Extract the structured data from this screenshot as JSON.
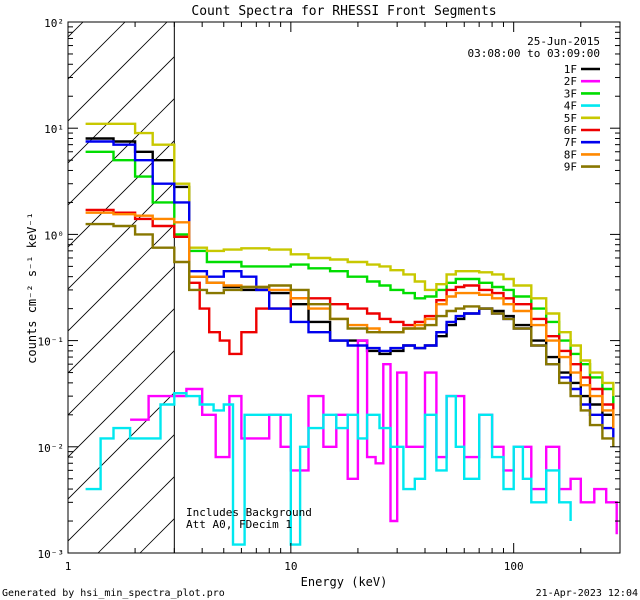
{
  "chart_data": {
    "type": "line",
    "title": "Count Spectra for RHESSI Front Segments",
    "xlabel": "Energy (keV)",
    "ylabel": "counts cm⁻² s⁻¹ keV⁻¹",
    "x_scale": "log",
    "y_scale": "log",
    "xlim": [
      1,
      300
    ],
    "ylim": [
      0.001,
      100
    ],
    "x_ticks": [
      {
        "value": 1,
        "label": "1"
      },
      {
        "value": 10,
        "label": "10"
      },
      {
        "value": 100,
        "label": "100"
      }
    ],
    "y_ticks": [
      {
        "value": 100,
        "label": "10²"
      },
      {
        "value": 10,
        "label": "10¹"
      },
      {
        "value": 1,
        "label": "10⁰"
      },
      {
        "value": 0.1,
        "label": "10⁻¹"
      },
      {
        "value": 0.01,
        "label": "10⁻²"
      },
      {
        "value": 0.001,
        "label": "10⁻³"
      }
    ],
    "date": "25-Jun-2015",
    "time_range": "03:08:00 to 03:09:00",
    "annotations": [
      "Includes Background",
      "Att A0, FDecim 1"
    ],
    "excluded_region_below_kev": 3,
    "series": [
      {
        "name": "1F",
        "color": "#000000",
        "x": [
          1.2,
          1.6,
          2.0,
          2.4,
          3.0,
          3.5,
          4.2,
          5.0,
          6.0,
          8.0,
          10,
          12,
          15,
          18,
          22,
          25,
          28,
          32,
          36,
          40,
          45,
          50,
          55,
          60,
          70,
          80,
          90,
          100,
          120,
          140,
          160,
          180,
          200,
          220,
          250,
          280
        ],
        "values": [
          8,
          7.5,
          6,
          5,
          2.8,
          0.4,
          0.35,
          0.32,
          0.3,
          0.28,
          0.22,
          0.15,
          0.1,
          0.1,
          0.08,
          0.075,
          0.08,
          0.09,
          0.085,
          0.09,
          0.11,
          0.14,
          0.16,
          0.18,
          0.2,
          0.19,
          0.17,
          0.14,
          0.1,
          0.07,
          0.05,
          0.04,
          0.03,
          0.025,
          0.02,
          0.015
        ]
      },
      {
        "name": "2F",
        "color": "#ff00ff",
        "x": [
          1.9,
          2.3,
          2.8,
          3.4,
          4.0,
          4.6,
          5.3,
          6.0,
          7.0,
          8.0,
          9.0,
          10,
          12,
          14,
          16,
          18,
          20,
          22,
          24,
          26,
          28,
          30,
          33,
          36,
          40,
          45,
          50,
          60,
          70,
          80,
          90,
          100,
          120,
          140,
          160,
          180,
          200,
          230,
          260,
          290
        ],
        "values": [
          0.018,
          0.03,
          0.03,
          0.035,
          0.02,
          0.008,
          0.03,
          0.012,
          0.012,
          0.02,
          0.01,
          0.006,
          0.03,
          0.01,
          0.02,
          0.005,
          0.1,
          0.008,
          0.007,
          0.06,
          0.002,
          0.05,
          0.01,
          0.01,
          0.05,
          0.008,
          0.03,
          0.008,
          0.02,
          0.01,
          0.006,
          0.01,
          0.004,
          0.01,
          0.004,
          0.005,
          0.003,
          0.004,
          0.003,
          0.0015
        ]
      },
      {
        "name": "3F",
        "color": "#00dd00",
        "x": [
          1.2,
          1.6,
          2.0,
          2.4,
          3.0,
          3.5,
          4.2,
          5.0,
          6.0,
          8.0,
          10,
          12,
          15,
          18,
          22,
          25,
          28,
          32,
          36,
          40,
          45,
          50,
          55,
          60,
          70,
          80,
          90,
          100,
          120,
          140,
          160,
          180,
          200,
          220,
          250,
          280
        ],
        "values": [
          6,
          5,
          3.5,
          2.0,
          1.0,
          0.7,
          0.55,
          0.55,
          0.5,
          0.5,
          0.52,
          0.48,
          0.45,
          0.4,
          0.36,
          0.33,
          0.3,
          0.28,
          0.25,
          0.26,
          0.3,
          0.35,
          0.38,
          0.38,
          0.35,
          0.32,
          0.3,
          0.26,
          0.2,
          0.15,
          0.1,
          0.075,
          0.06,
          0.045,
          0.035,
          0.025
        ]
      },
      {
        "name": "4F",
        "color": "#00e8f0",
        "x": [
          1.2,
          1.4,
          1.6,
          1.9,
          2.2,
          2.6,
          3.0,
          3.4,
          3.9,
          4.5,
          5.0,
          5.5,
          6.2,
          7.0,
          8.0,
          9.0,
          10,
          11,
          12,
          14,
          16,
          18,
          20,
          22,
          25,
          28,
          32,
          36,
          40,
          45,
          50,
          55,
          60,
          70,
          80,
          90,
          100,
          110,
          120,
          140,
          160,
          180
        ],
        "values": [
          0.004,
          0.012,
          0.015,
          0.012,
          0.012,
          0.025,
          0.032,
          0.03,
          0.025,
          0.022,
          0.025,
          0.0012,
          0.02,
          0.02,
          0.02,
          0.02,
          0.0012,
          0.01,
          0.015,
          0.02,
          0.015,
          0.02,
          0.012,
          0.02,
          0.015,
          0.01,
          0.004,
          0.005,
          0.02,
          0.006,
          0.03,
          0.01,
          0.005,
          0.02,
          0.008,
          0.004,
          0.01,
          0.005,
          0.003,
          0.006,
          0.003,
          0.002
        ]
      },
      {
        "name": "5F",
        "color": "#c8c800",
        "x": [
          1.2,
          1.6,
          2.0,
          2.4,
          3.0,
          3.5,
          4.2,
          5.0,
          6.0,
          8.0,
          10,
          12,
          15,
          18,
          22,
          25,
          28,
          32,
          36,
          40,
          45,
          50,
          55,
          60,
          70,
          80,
          90,
          100,
          120,
          140,
          160,
          180,
          200,
          220,
          250,
          280
        ],
        "values": [
          11,
          11,
          9,
          7,
          3,
          0.75,
          0.7,
          0.72,
          0.74,
          0.72,
          0.65,
          0.6,
          0.58,
          0.55,
          0.52,
          0.5,
          0.46,
          0.42,
          0.36,
          0.3,
          0.34,
          0.42,
          0.45,
          0.45,
          0.44,
          0.42,
          0.38,
          0.33,
          0.25,
          0.18,
          0.12,
          0.09,
          0.065,
          0.05,
          0.04,
          0.03
        ]
      },
      {
        "name": "6F",
        "color": "#ee0000",
        "x": [
          1.2,
          1.6,
          2.0,
          2.4,
          3.0,
          3.5,
          3.9,
          4.3,
          4.8,
          5.3,
          6.0,
          7.0,
          8.0,
          10,
          12,
          15,
          18,
          22,
          25,
          28,
          32,
          36,
          40,
          45,
          50,
          55,
          60,
          70,
          80,
          90,
          100,
          120,
          140,
          160,
          180,
          200,
          220,
          250,
          280
        ],
        "values": [
          1.7,
          1.6,
          1.4,
          1.2,
          0.95,
          0.35,
          0.2,
          0.12,
          0.1,
          0.075,
          0.12,
          0.2,
          0.2,
          0.25,
          0.25,
          0.22,
          0.2,
          0.18,
          0.16,
          0.15,
          0.14,
          0.15,
          0.17,
          0.24,
          0.3,
          0.32,
          0.33,
          0.3,
          0.28,
          0.25,
          0.22,
          0.16,
          0.11,
          0.08,
          0.06,
          0.045,
          0.035,
          0.025,
          0.02
        ]
      },
      {
        "name": "7F",
        "color": "#0000ee",
        "x": [
          1.2,
          1.6,
          2.0,
          2.4,
          3.0,
          3.5,
          4.2,
          5.0,
          6.0,
          7.0,
          8.0,
          10,
          12,
          15,
          18,
          22,
          25,
          28,
          32,
          36,
          40,
          45,
          50,
          55,
          60,
          70,
          80,
          90,
          100,
          120,
          140,
          160,
          180,
          200,
          220,
          250,
          280
        ],
        "values": [
          7.5,
          7,
          5,
          3,
          2.0,
          0.45,
          0.4,
          0.45,
          0.4,
          0.3,
          0.2,
          0.15,
          0.12,
          0.1,
          0.09,
          0.085,
          0.08,
          0.085,
          0.09,
          0.085,
          0.09,
          0.12,
          0.15,
          0.17,
          0.18,
          0.2,
          0.18,
          0.16,
          0.13,
          0.09,
          0.06,
          0.045,
          0.035,
          0.025,
          0.02,
          0.015,
          0.012
        ]
      },
      {
        "name": "8F",
        "color": "#ff8800",
        "x": [
          1.2,
          1.6,
          2.0,
          2.4,
          3.0,
          3.5,
          4.2,
          5.0,
          6.0,
          8.0,
          10,
          12,
          15,
          18,
          22,
          25,
          28,
          32,
          36,
          40,
          45,
          50,
          55,
          60,
          70,
          80,
          90,
          100,
          120,
          140,
          160,
          180,
          200,
          220,
          250,
          280
        ],
        "values": [
          1.6,
          1.55,
          1.5,
          1.4,
          1.3,
          0.4,
          0.35,
          0.33,
          0.32,
          0.3,
          0.25,
          0.2,
          0.16,
          0.14,
          0.13,
          0.12,
          0.12,
          0.13,
          0.14,
          0.16,
          0.22,
          0.26,
          0.28,
          0.28,
          0.27,
          0.25,
          0.22,
          0.19,
          0.14,
          0.1,
          0.07,
          0.05,
          0.038,
          0.03,
          0.022,
          0.015
        ]
      },
      {
        "name": "9F",
        "color": "#887700",
        "x": [
          1.2,
          1.6,
          2.0,
          2.4,
          3.0,
          3.5,
          4.2,
          5.0,
          6.0,
          8.0,
          10,
          12,
          15,
          18,
          22,
          25,
          28,
          32,
          36,
          40,
          45,
          50,
          55,
          60,
          70,
          80,
          90,
          100,
          120,
          140,
          160,
          180,
          200,
          220,
          250,
          280
        ],
        "values": [
          1.25,
          1.2,
          1.0,
          0.75,
          0.55,
          0.3,
          0.28,
          0.3,
          0.32,
          0.33,
          0.3,
          0.22,
          0.16,
          0.13,
          0.12,
          0.12,
          0.12,
          0.13,
          0.13,
          0.14,
          0.17,
          0.19,
          0.2,
          0.21,
          0.2,
          0.18,
          0.16,
          0.13,
          0.09,
          0.06,
          0.04,
          0.03,
          0.022,
          0.016,
          0.012,
          0.01
        ]
      }
    ]
  },
  "footer": {
    "left": "Generated by hsi_min_spectra_plot.pro",
    "right": "21-Apr-2023 12:04"
  }
}
